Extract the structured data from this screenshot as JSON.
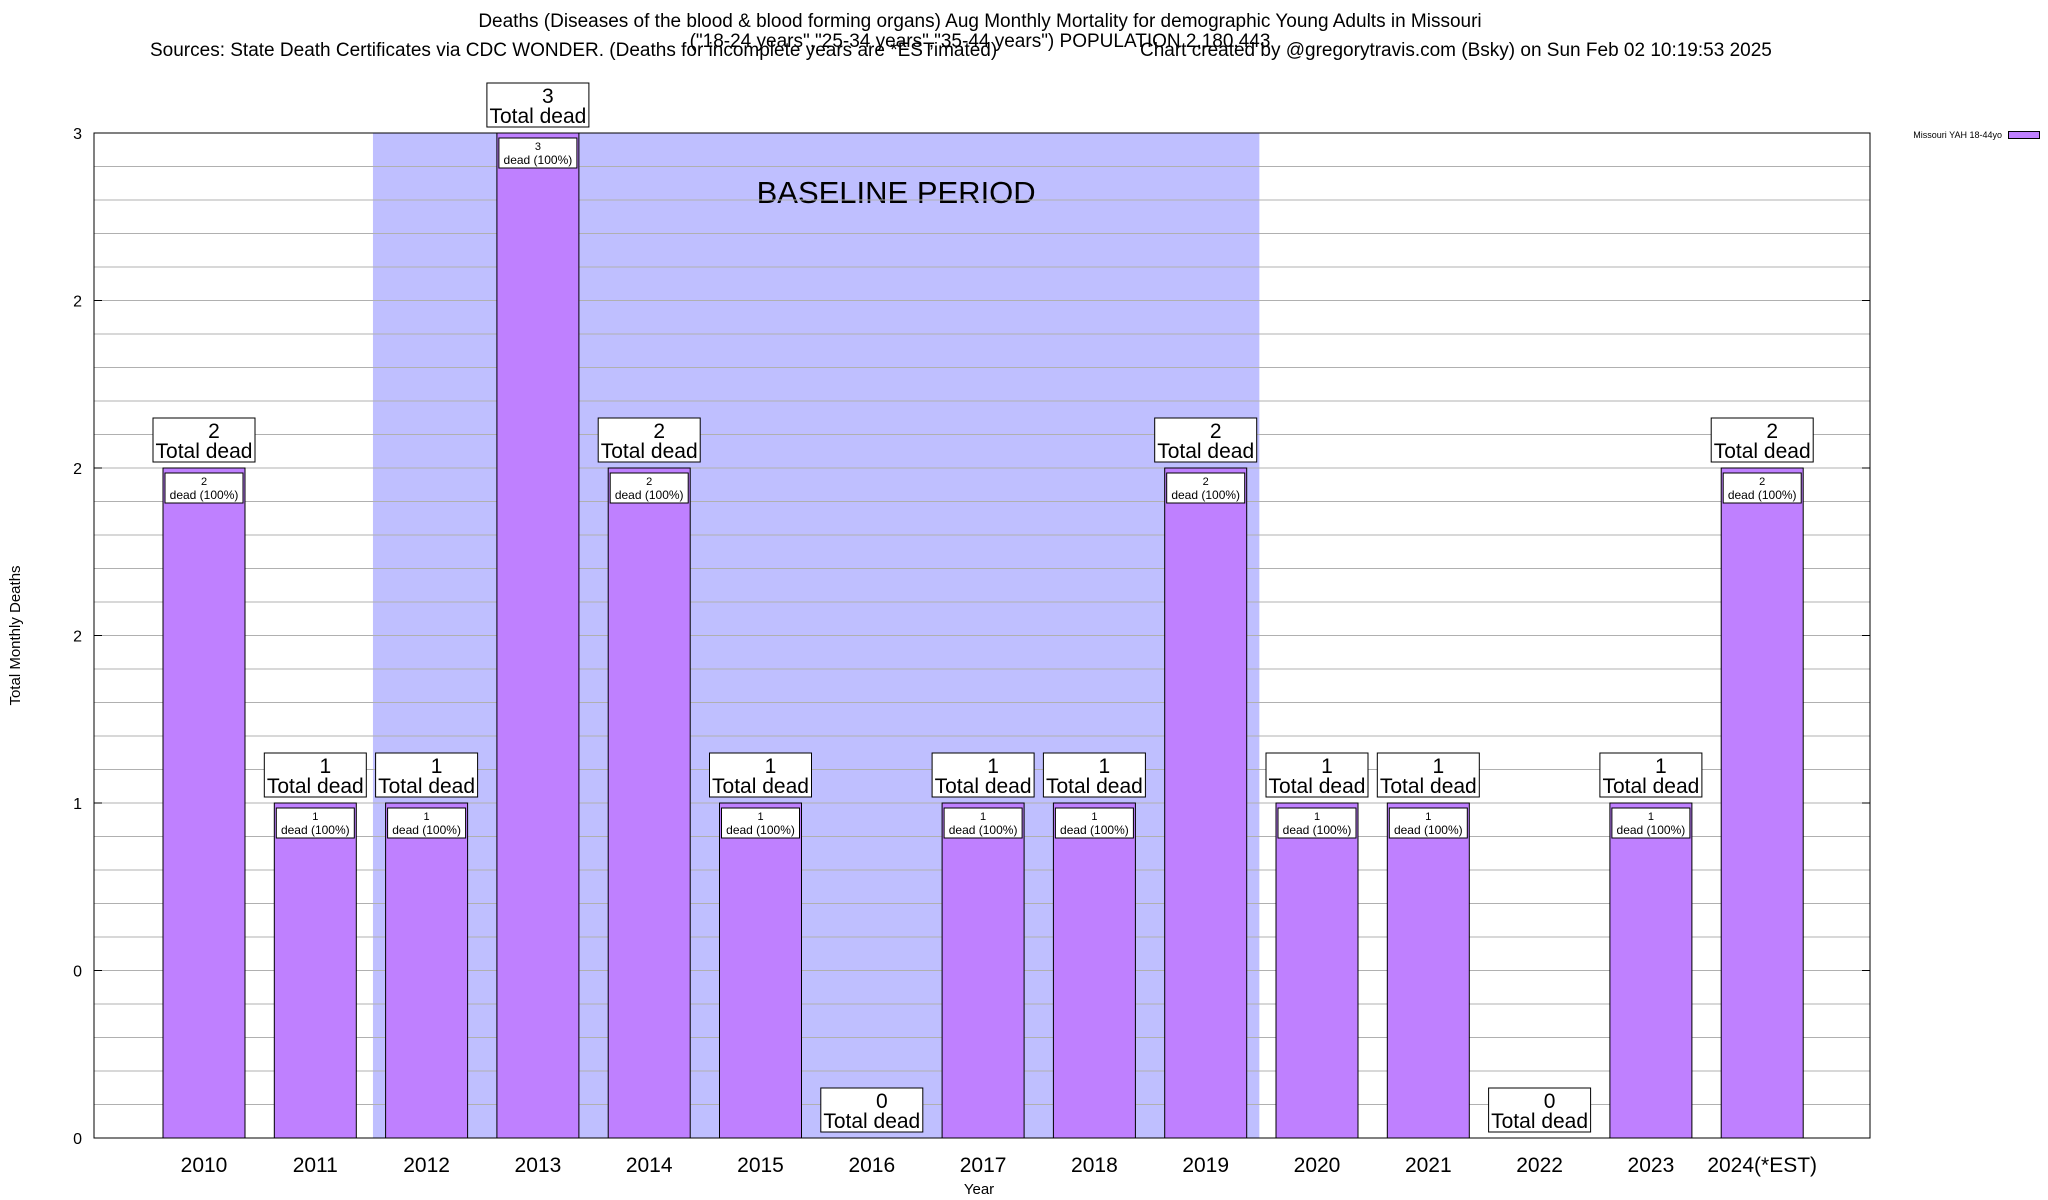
{
  "chart_data": {
    "type": "bar",
    "title": "Deaths (Diseases of the blood & blood forming organs) Aug Monthly Mortality for demographic Young Adults in Missouri",
    "subtitle": "(\"18-24 years\",\"25-34 years\",\"35-44 years\") POPULATION 2,180,443",
    "sources": "Sources: State Death Certificates via CDC WONDER. (Deaths for incomplete years are *ESTimated)",
    "credit": "Chart created by @gregorytravis.com (Bsky) on Sun Feb 02 10:19:53 2025",
    "xlabel": "Year",
    "ylabel": "Total Monthly Deaths",
    "ylim": [
      0,
      3
    ],
    "y_tick_labels": [
      "0",
      "0",
      "1",
      "2",
      "2",
      "2",
      "3"
    ],
    "categories": [
      "2010",
      "2011",
      "2012",
      "2013",
      "2014",
      "2015",
      "2016",
      "2017",
      "2018",
      "2019",
      "2020",
      "2021",
      "2022",
      "2023",
      "2024(*EST)"
    ],
    "series": [
      {
        "name": "Missouri YAH 18-44yo",
        "color": "#bf80ff",
        "values": [
          2,
          1,
          1,
          3,
          2,
          1,
          0,
          1,
          1,
          2,
          1,
          1,
          0,
          1,
          2
        ]
      }
    ],
    "total_label_suffix": "Total dead",
    "inner_label_suffix": "dead (100%)",
    "baseline": {
      "label": "BASELINE PERIOD",
      "from": "2012",
      "to": "2019",
      "color": "#bfbfff"
    },
    "grid": true,
    "legend_position": "top-right",
    "legend_label": "Missouri YAH 18-44yo"
  }
}
